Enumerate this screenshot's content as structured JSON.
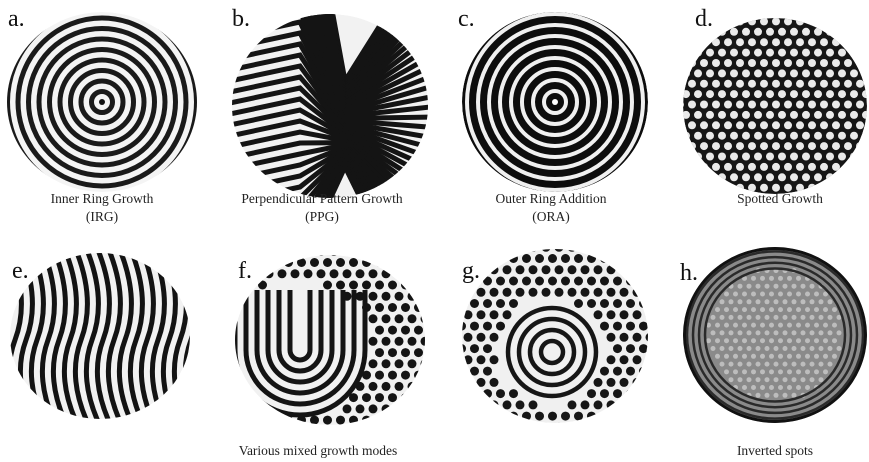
{
  "panels": [
    {
      "letter": "a.",
      "caption": [
        "Inner Ring Growth",
        "(IRG)"
      ]
    },
    {
      "letter": "b.",
      "caption": [
        "Perpendicular Pattern Growth",
        "(PPG)"
      ]
    },
    {
      "letter": "c.",
      "caption": [
        "Outer Ring Addition",
        "(ORA)"
      ]
    },
    {
      "letter": "d.",
      "caption": [
        "Spotted Growth"
      ]
    },
    {
      "letter": "e."
    },
    {
      "letter": "f."
    },
    {
      "letter": "g."
    },
    {
      "letter": "h."
    }
  ],
  "captions": [
    "Various mixed growth modes",
    "Inverted spots"
  ]
}
